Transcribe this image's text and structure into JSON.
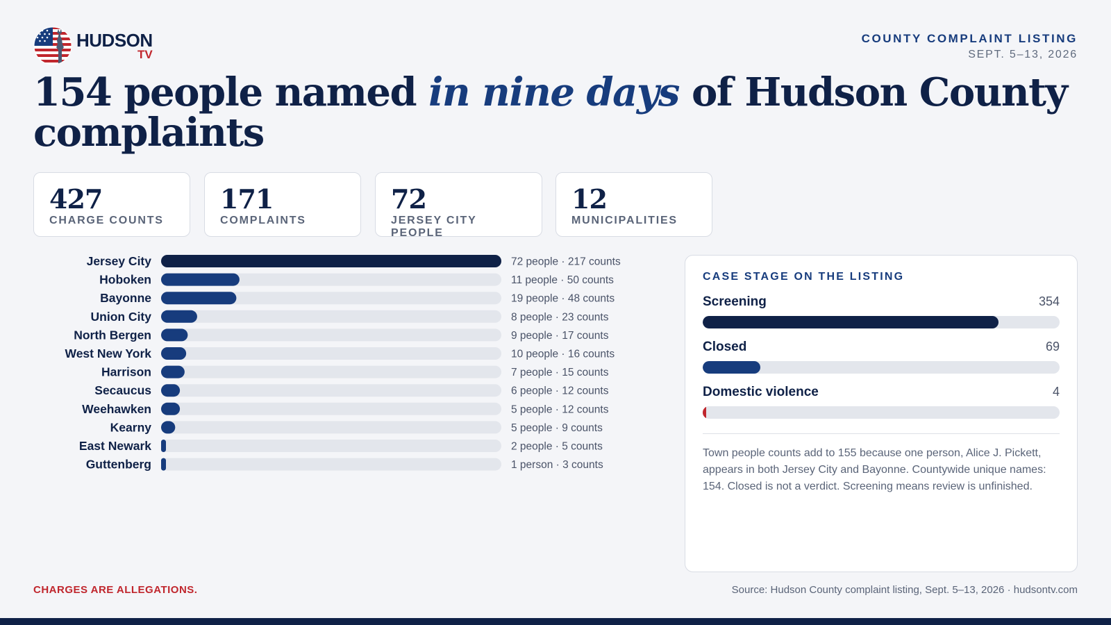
{
  "brand": {
    "name": "HUDSON",
    "sub": "TV"
  },
  "header": {
    "kicker": "COUNTY COMPLAINT LISTING",
    "dates": "SEPT. 5–13, 2026"
  },
  "headline": {
    "part1": "154 people named ",
    "emphasis": "in nine days",
    "part2": " of Hudson County complaints"
  },
  "stats": [
    {
      "value": "427",
      "label": "CHARGE COUNTS"
    },
    {
      "value": "171",
      "label": "COMPLAINTS"
    },
    {
      "value": "72",
      "label": "JERSEY CITY PEOPLE"
    },
    {
      "value": "12",
      "label": "MUNICIPALITIES"
    }
  ],
  "chart_data": [
    {
      "type": "bar",
      "orientation": "horizontal",
      "categories": [
        "Jersey City",
        "Hoboken",
        "Bayonne",
        "Union City",
        "North Bergen",
        "West New York",
        "Harrison",
        "Secaucus",
        "Weehawken",
        "Kearny",
        "East Newark",
        "Guttenberg"
      ],
      "values": [
        217,
        50,
        48,
        23,
        17,
        16,
        15,
        12,
        12,
        9,
        5,
        3
      ],
      "people": [
        72,
        11,
        19,
        8,
        9,
        10,
        7,
        6,
        5,
        5,
        2,
        1
      ],
      "data_labels": [
        "72 people · 217 counts",
        "11 people · 50 counts",
        "19 people · 48 counts",
        "8 people · 23 counts",
        "9 people · 17 counts",
        "10 people · 16 counts",
        "7 people · 15 counts",
        "6 people · 12 counts",
        "5 people · 12 counts",
        "5 people · 9 counts",
        "2 people · 5 counts",
        "1 person · 3 counts"
      ],
      "xlim": [
        0,
        217
      ],
      "grid": false,
      "colors": {
        "top": "#0f2147",
        "rest": "#173c7d",
        "track": "#e3e6ec"
      }
    },
    {
      "type": "bar",
      "orientation": "horizontal",
      "title": "CASE STAGE ON THE LISTING",
      "categories": [
        "Screening",
        "Closed",
        "Domestic violence"
      ],
      "values": [
        354,
        69,
        4
      ],
      "xlim": [
        0,
        427
      ],
      "colors": [
        "#0f2147",
        "#173c7d",
        "#c0262d"
      ],
      "note": "Town people counts add to 155 because one person, Alice J. Pickett, appears in both Jersey City and Bayonne. Countywide unique names: 154. Closed is not a verdict. Screening means review is unfinished."
    }
  ],
  "footer": {
    "disclaimer": "CHARGES ARE ALLEGATIONS.",
    "source": "Source: Hudson County complaint listing, Sept. 5–13, 2026 · hudsontv.com"
  }
}
